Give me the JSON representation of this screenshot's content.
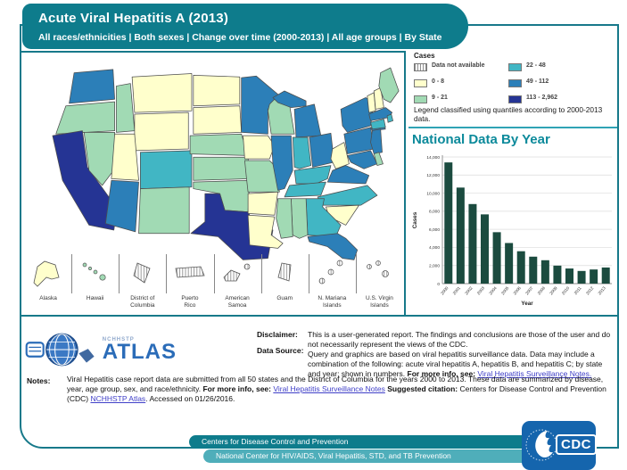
{
  "header": {
    "title": "Acute Viral Hepatitis  A (2013)",
    "subtitle": "All races/ethnicities | Both sexes | Change over time (2000-2013) | All age groups | By State"
  },
  "legend": {
    "title": "Cases",
    "note": "Legend classified using quantiles according to 2000-2013 data.",
    "classes": [
      {
        "label": "Data not available",
        "color": "hatch"
      },
      {
        "label": "0 - 8",
        "color": "#FFFFCC"
      },
      {
        "label": "9 - 21",
        "color": "#A1DAB4"
      },
      {
        "label": "22 - 48",
        "color": "#41B6C4"
      },
      {
        "label": "49 - 112",
        "color": "#2C7FB8"
      },
      {
        "label": "113 - 2,962",
        "color": "#253494"
      }
    ]
  },
  "map": {
    "states": [
      {
        "id": "WA",
        "class": 4
      },
      {
        "id": "OR",
        "class": 2
      },
      {
        "id": "CA",
        "class": 5
      },
      {
        "id": "NV",
        "class": 2
      },
      {
        "id": "ID",
        "class": 2
      },
      {
        "id": "MT",
        "class": 1
      },
      {
        "id": "WY",
        "class": 1
      },
      {
        "id": "UT",
        "class": 1
      },
      {
        "id": "CO",
        "class": 3
      },
      {
        "id": "AZ",
        "class": 4
      },
      {
        "id": "NM",
        "class": 2
      },
      {
        "id": "ND",
        "class": 1
      },
      {
        "id": "SD",
        "class": 1
      },
      {
        "id": "NE",
        "class": 2
      },
      {
        "id": "KS",
        "class": 2
      },
      {
        "id": "OK",
        "class": 2
      },
      {
        "id": "TX",
        "class": 5
      },
      {
        "id": "MN",
        "class": 4
      },
      {
        "id": "IA",
        "class": 1
      },
      {
        "id": "MO",
        "class": 2
      },
      {
        "id": "AR",
        "class": 1
      },
      {
        "id": "LA",
        "class": 1
      },
      {
        "id": "WI",
        "class": 2
      },
      {
        "id": "IL",
        "class": 4
      },
      {
        "id": "MI",
        "class": 4
      },
      {
        "id": "IN",
        "class": 3
      },
      {
        "id": "OH",
        "class": 4
      },
      {
        "id": "KY",
        "class": 3
      },
      {
        "id": "TN",
        "class": 3
      },
      {
        "id": "WV",
        "class": 1
      },
      {
        "id": "VA",
        "class": 4
      },
      {
        "id": "NC",
        "class": 3
      },
      {
        "id": "SC",
        "class": 1
      },
      {
        "id": "GA",
        "class": 3
      },
      {
        "id": "AL",
        "class": 2
      },
      {
        "id": "MS",
        "class": 2
      },
      {
        "id": "FL",
        "class": 4
      },
      {
        "id": "NY",
        "class": 4
      },
      {
        "id": "PA",
        "class": 4
      },
      {
        "id": "NJ",
        "class": 4
      },
      {
        "id": "MD",
        "class": 4
      },
      {
        "id": "DE",
        "class": 2
      },
      {
        "id": "VT",
        "class": 1
      },
      {
        "id": "NH",
        "class": 1
      },
      {
        "id": "ME",
        "class": 2
      },
      {
        "id": "MA",
        "class": 4
      },
      {
        "id": "CT",
        "class": 3
      },
      {
        "id": "RI",
        "class": 3
      }
    ],
    "territories": [
      {
        "id": "AK",
        "label": "Alaska",
        "class": 1
      },
      {
        "id": "HI",
        "label": "Hawaii",
        "class": 2
      },
      {
        "id": "DC",
        "label": "District of\nColumbia",
        "class": 0
      },
      {
        "id": "PR",
        "label": "Puerto\nRico",
        "class": 0
      },
      {
        "id": "AS",
        "label": "American\nSamoa",
        "class": 0
      },
      {
        "id": "GU",
        "label": "Guam",
        "class": 0
      },
      {
        "id": "MP",
        "label": "N. Mariana\nIslands",
        "class": 0
      },
      {
        "id": "VI",
        "label": "U.S. Virgin\nIslands",
        "class": 0
      }
    ]
  },
  "chart_data": {
    "type": "bar",
    "title": "National Data By Year",
    "xlabel": "Year",
    "ylabel": "Cases",
    "categories": [
      "2000",
      "2001",
      "2002",
      "2003",
      "2004",
      "2005",
      "2006",
      "2007",
      "2008",
      "2009",
      "2010",
      "2011",
      "2012",
      "2013"
    ],
    "values": [
      13397,
      10616,
      8795,
      7653,
      5683,
      4488,
      3579,
      2979,
      2585,
      1987,
      1670,
      1398,
      1562,
      1781
    ],
    "ylim": [
      0,
      14000
    ],
    "yticks": [
      "0",
      "2,000",
      "4,000",
      "6,000",
      "8,000",
      "10,000",
      "12,000",
      "14,000"
    ],
    "bar_color": "#1B4B3F",
    "grid": true,
    "legend_position": "none"
  },
  "footer": {
    "atlas_small": "NCHHSTP",
    "atlas_big": "ATLAS",
    "disclaimer_label": "Disclaimer:",
    "disclaimer_text": "This is a user-generated report. The findings and conclusions are those of the user and do not necessarily represent the views of the CDC.",
    "datasource_label": "Data Source:",
    "datasource_segments": [
      {
        "t": "Query and graphics are based on viral hepatitis surveillance data. Data may include a combination of the following: acute viral hepatitis A, hepatitis B, and hepatitis C; by state and year; shown in numbers. "
      },
      {
        "t": "For more info, see: ",
        "b": true
      },
      {
        "t": "Viral Hepatitis Surveillance Notes.",
        "link": true
      }
    ],
    "notes_label": "Notes:",
    "notes_segments": [
      {
        "t": "Viral Hepatitis case report data are submitted from all 50 states and the District of Columbia for the years 2000 to 2013. These data are summarized by disease, year, age group, sex, and race/ethnicity. "
      },
      {
        "t": "For more info, see: ",
        "b": true
      },
      {
        "t": "Viral Hepatitis Surveillance Notes",
        "link": true
      },
      {
        "t": " "
      },
      {
        "t": "Suggested citation:",
        "b": true
      },
      {
        "t": " Centers for Disease Control and Prevention (CDC) "
      },
      {
        "t": "NCHHSTP Atlas",
        "link": true
      },
      {
        "t": ". Accessed on 01/26/2016."
      }
    ]
  },
  "bottom": {
    "bar1": "Centers for Disease Control and Prevention",
    "bar2": "National Center for HIV/AIDS, Viral Hepatitis, STD, and TB Prevention",
    "cdc_text": "CDC"
  },
  "colors": {
    "teal_dark": "#0E7C8C",
    "teal_border": "#17798A",
    "teal_light": "#4FAEBA",
    "chart_title": "#0C8A9B",
    "cdc_blue": "#1565AD"
  }
}
